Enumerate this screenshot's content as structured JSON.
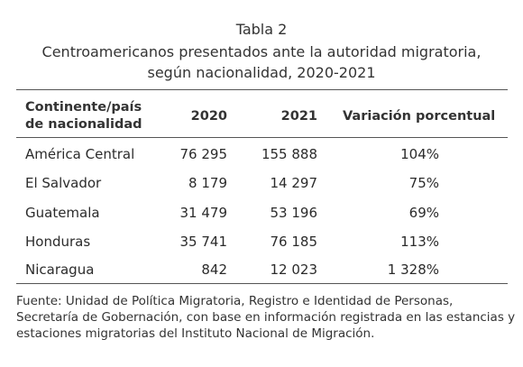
{
  "table": {
    "label": "Tabla 2",
    "title_line1": "Centroamericanos presentados ante la autoridad migratoria,",
    "title_line2": "según nacionalidad, 2020-2021",
    "headers": {
      "col0_line1": "Continente/país",
      "col0_line2": "de nacionalidad",
      "col1": "2020",
      "col2": "2021",
      "col3": "Variación porcentual"
    },
    "rows": [
      {
        "name": "América Central",
        "y2020": "76 295",
        "y2021": "155 888",
        "var": "104%"
      },
      {
        "name": "El Salvador",
        "y2020": "8 179",
        "y2021": "14 297",
        "var": "75%"
      },
      {
        "name": "Guatemala",
        "y2020": "31 479",
        "y2021": "53 196",
        "var": "69%"
      },
      {
        "name": "Honduras",
        "y2020": "35 741",
        "y2021": "76 185",
        "var": "113%"
      },
      {
        "name": "Nicaragua",
        "y2020": "842",
        "y2021": "12 023",
        "var": "1 328%"
      }
    ]
  },
  "source": {
    "line1": "Fuente: Unidad de Política Migratoria, Registro e Identidad de Personas,",
    "line2": "Secretaría de Gobernación, con base en información registrada en las estancias y",
    "line3": "estaciones migratorias del Instituto Nacional de Migración."
  }
}
